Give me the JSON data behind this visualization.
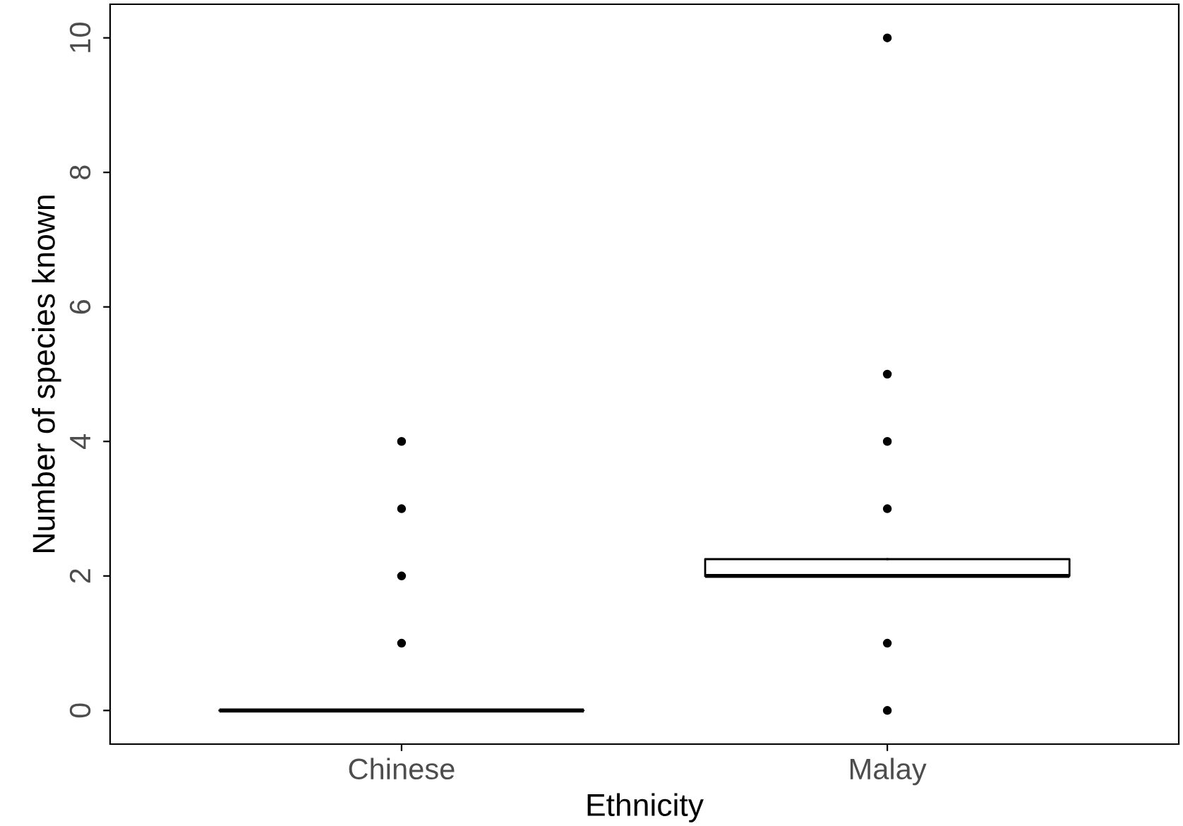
{
  "chart_data": {
    "type": "box",
    "xlabel": "Ethnicity",
    "ylabel": "Number of species known",
    "categories": [
      "Chinese",
      "Malay"
    ],
    "boxes": [
      {
        "low": 0,
        "q1": 0,
        "median": 0,
        "q3": 0,
        "high": 0,
        "outliers": [
          1,
          2,
          3,
          4
        ]
      },
      {
        "low": 2,
        "q1": 2,
        "median": 2,
        "q3": 2.25,
        "high": 2.25,
        "outliers": [
          0,
          1,
          3,
          4,
          5,
          10
        ]
      }
    ],
    "ylim": [
      -0.5,
      10.5
    ],
    "yticks": [
      0,
      2,
      4,
      6,
      8,
      10
    ],
    "grid": false,
    "legend": false
  }
}
